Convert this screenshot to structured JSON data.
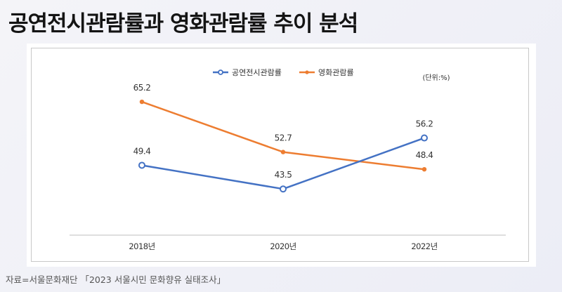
{
  "title": "공연전시관람률과 영화관람률 추이 분석",
  "unit_label": "(단위:%)",
  "source": "자료=서울문화재단 「2023 서울시민 문화향유 실태조사」",
  "colors": {
    "exhibition": "#4472c4",
    "movie": "#ed7d31",
    "axis": "#bfbfbf",
    "label": "#333333"
  },
  "chart_data": {
    "type": "line",
    "categories": [
      "2018년",
      "2020년",
      "2022년"
    ],
    "series": [
      {
        "name": "공연전시관람률",
        "values": [
          49.4,
          43.5,
          56.2
        ],
        "labels": [
          "49.4",
          "43.5",
          "56.2"
        ],
        "marker": "circle"
      },
      {
        "name": "영화관람률",
        "values": [
          65.2,
          52.7,
          48.4
        ],
        "labels": [
          "65.2",
          "52.7",
          "48.4"
        ],
        "marker": "dot"
      }
    ],
    "ylim": [
      32,
      75
    ],
    "grid": false,
    "legend": "top-center"
  }
}
